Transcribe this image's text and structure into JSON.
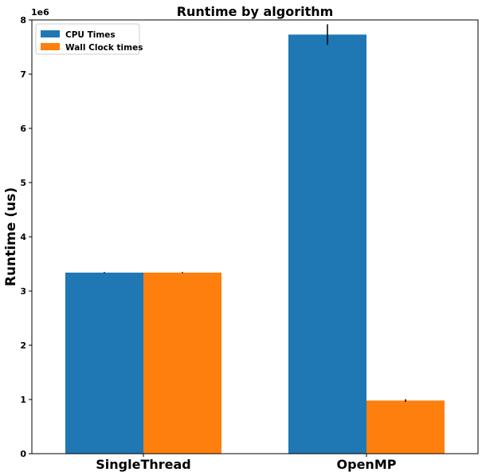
{
  "chart_data": {
    "type": "bar",
    "title": "Runtime by algorithm",
    "xlabel": "",
    "ylabel": "Runtime (us)",
    "y_scale_label": "1e6",
    "ylim": [
      0,
      8000000
    ],
    "yticks": [
      0,
      1000000,
      2000000,
      3000000,
      4000000,
      5000000,
      6000000,
      7000000,
      8000000
    ],
    "ytick_labels": [
      "0",
      "1",
      "2",
      "3",
      "4",
      "5",
      "6",
      "7",
      "8"
    ],
    "categories": [
      "SingleThread",
      "OpenMP"
    ],
    "series": [
      {
        "name": "CPU Times",
        "color": "#1f77b4",
        "values": [
          3340000,
          7730000
        ],
        "errors": [
          10000,
          190000
        ]
      },
      {
        "name": "Wall Clock times",
        "color": "#ff7f0e",
        "values": [
          3340000,
          980000
        ],
        "errors": [
          10000,
          25000
        ]
      }
    ],
    "grid": false,
    "legend": "top-left"
  }
}
